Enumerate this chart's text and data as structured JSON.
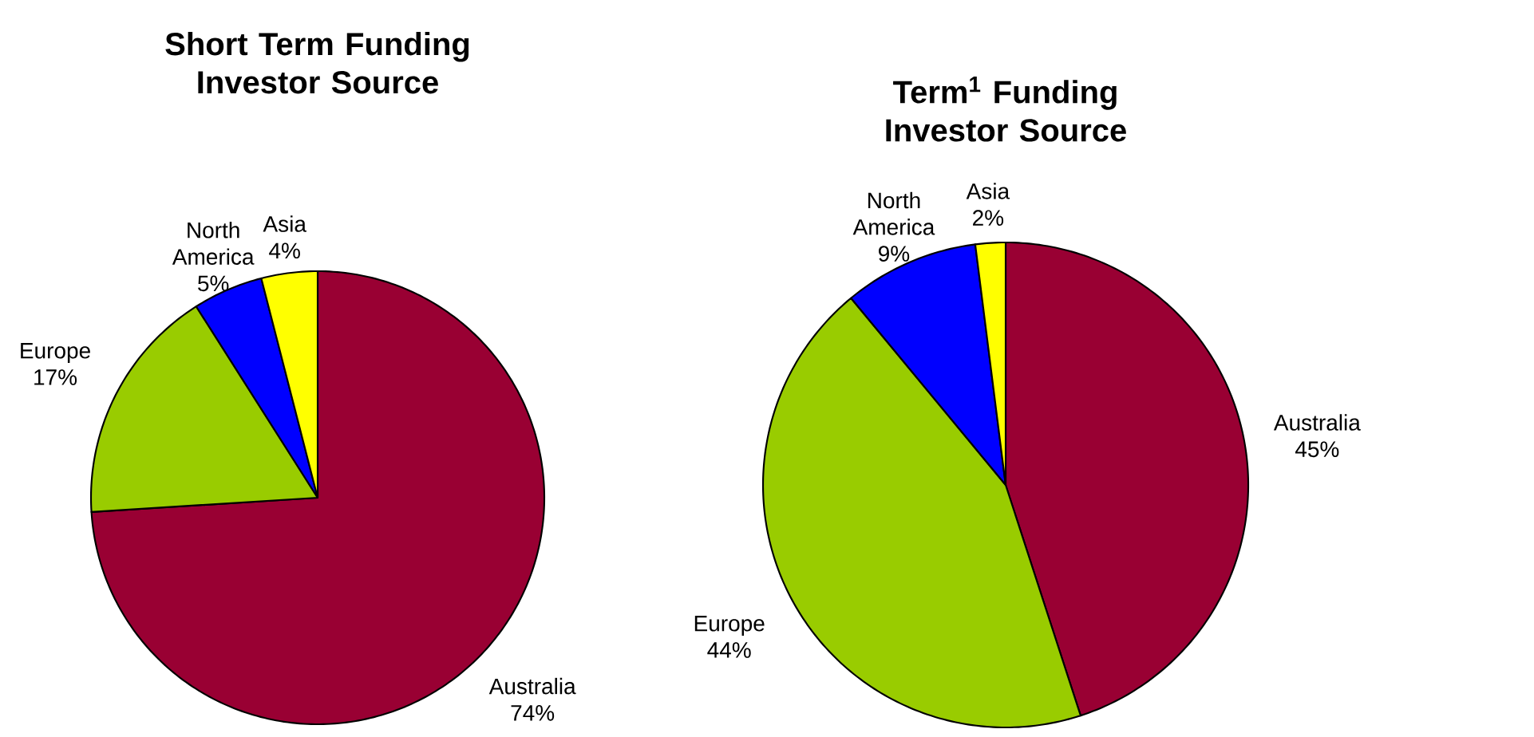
{
  "chart_data": [
    {
      "type": "pie",
      "title": "Short Term Funding Investor Source",
      "categories": [
        "Australia",
        "Europe",
        "North America",
        "Asia"
      ],
      "values": [
        74,
        17,
        5,
        4
      ],
      "value_labels": [
        "74%",
        "17%",
        "5%",
        "4%"
      ],
      "colors": [
        "#990033",
        "#99cc00",
        "#0000ff",
        "#ffff00"
      ]
    },
    {
      "type": "pie",
      "title": "Term$^{1}$ Funding Investor Source",
      "categories": [
        "Australia",
        "Europe",
        "North America",
        "Asia"
      ],
      "values": [
        45,
        44,
        9,
        2
      ],
      "value_labels": [
        "45%",
        "44%",
        "9%",
        "2%"
      ],
      "colors": [
        "#990033",
        "#99cc00",
        "#0000ff",
        "#ffff00"
      ]
    }
  ]
}
